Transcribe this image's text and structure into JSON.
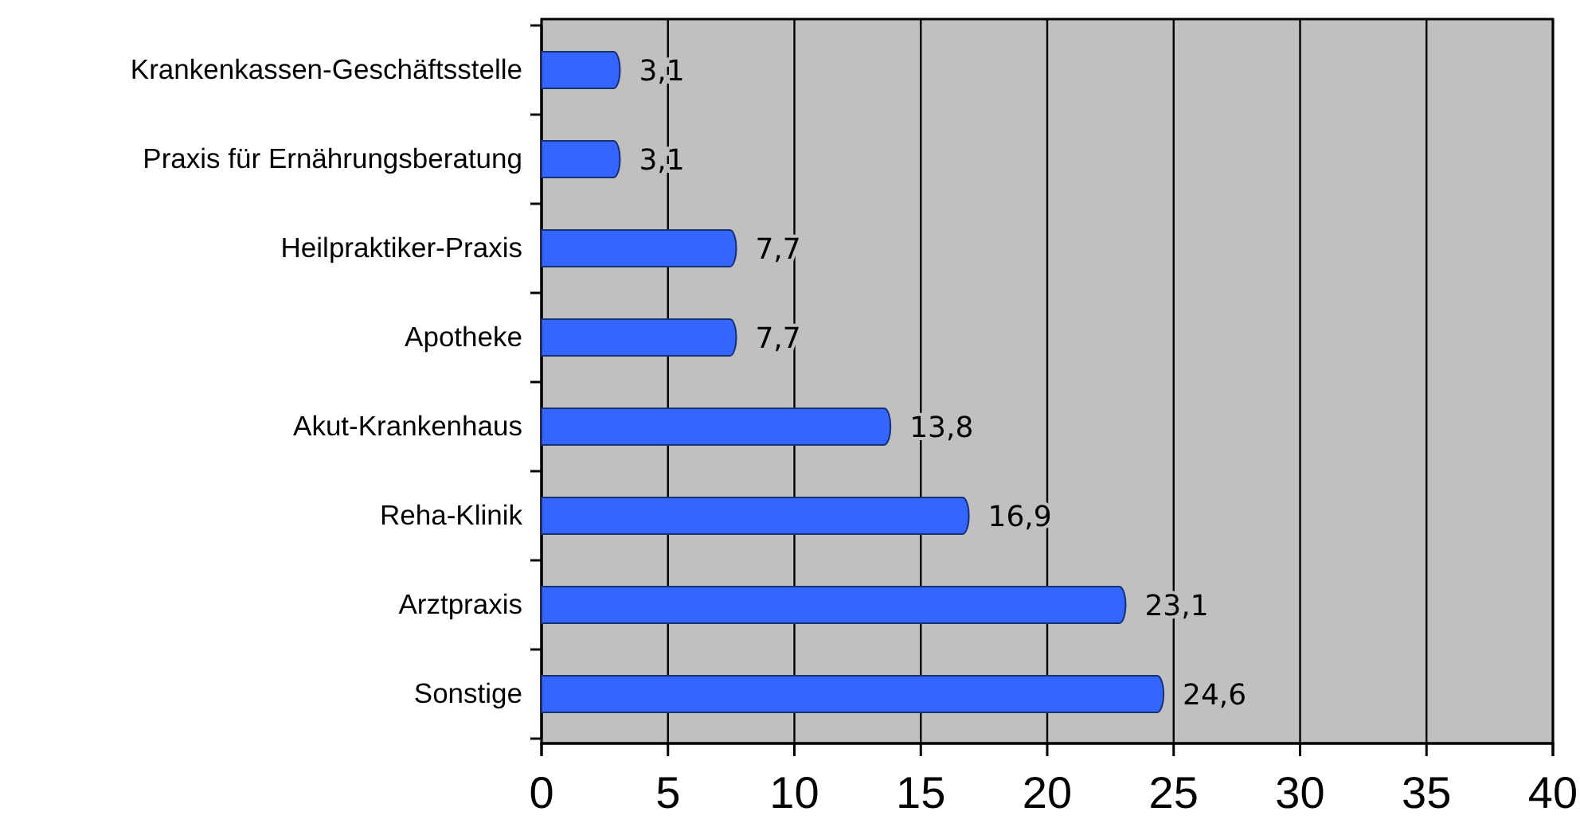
{
  "chart_data": {
    "type": "bar",
    "orientation": "horizontal",
    "categories": [
      "Krankenkassen-Geschäftsstelle",
      "Praxis für Ernährungsberatung",
      "Heilpraktiker-Praxis",
      "Apotheke",
      "Akut-Krankenhaus",
      "Reha-Klinik",
      "Arztpraxis",
      "Sonstige"
    ],
    "values": [
      3.1,
      3.1,
      7.7,
      7.7,
      13.8,
      16.9,
      23.1,
      24.6
    ],
    "value_labels": [
      "3,1",
      "3,1",
      "7,7",
      "7,7",
      "13,8",
      "16,9",
      "23,1",
      "24,6"
    ],
    "color": "#3366ff",
    "xlim": [
      0,
      40
    ],
    "xticks": [
      0,
      5,
      10,
      15,
      20,
      25,
      30,
      35,
      40
    ],
    "grid": "x"
  }
}
